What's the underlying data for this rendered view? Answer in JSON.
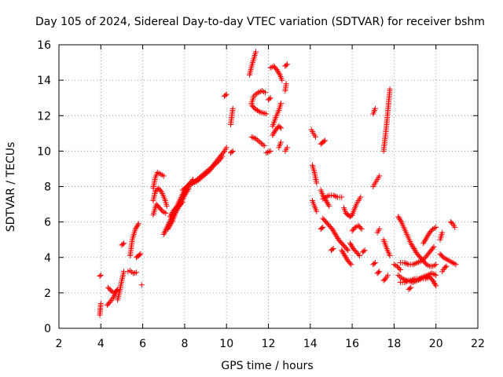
{
  "chart_data": {
    "type": "scatter",
    "title": "Day 105 of 2024, Sidereal Day-to-day VTEC variation (SDTVAR) for receiver bshm",
    "xlabel": "GPS time / hours",
    "ylabel": "SDTVAR / TECUs",
    "xlim": [
      2,
      22
    ],
    "ylim": [
      0,
      16
    ],
    "xticks": [
      "2",
      "4",
      "6",
      "8",
      "10",
      "12",
      "14",
      "16",
      "18",
      "20",
      "22"
    ],
    "yticks": [
      "0",
      "2",
      "4",
      "6",
      "8",
      "10",
      "12",
      "14",
      "16"
    ],
    "grid": true,
    "marker": "+",
    "color": "#ff0000",
    "segments": [
      {
        "x": [
          3.95,
          4.0
        ],
        "y": [
          2.95,
          3.0
        ]
      },
      {
        "x": [
          3.95,
          4.0
        ],
        "y": [
          0.75,
          1.4
        ]
      },
      {
        "x": [
          4.3,
          4.45,
          4.6,
          4.7,
          4.8
        ],
        "y": [
          1.3,
          1.5,
          1.75,
          2.0,
          2.2
        ]
      },
      {
        "x": [
          4.35,
          4.5,
          4.65,
          4.78
        ],
        "y": [
          2.3,
          2.1,
          2.0,
          2.15
        ]
      },
      {
        "x": [
          4.8,
          4.9,
          5.0,
          5.1
        ],
        "y": [
          1.6,
          2.1,
          2.7,
          3.2
        ]
      },
      {
        "x": [
          5.0,
          5.1
        ],
        "y": [
          4.7,
          4.8
        ]
      },
      {
        "x": [
          5.3,
          5.4,
          5.55,
          5.7
        ],
        "y": [
          3.2,
          3.25,
          3.1,
          3.15
        ]
      },
      {
        "x": [
          5.4,
          5.5,
          5.65,
          5.8
        ],
        "y": [
          4.1,
          5.0,
          5.6,
          5.9
        ]
      },
      {
        "x": [
          5.7,
          5.8,
          5.9
        ],
        "y": [
          4.0,
          4.1,
          4.2
        ]
      },
      {
        "x": [
          5.95
        ],
        "y": [
          2.45
        ]
      },
      {
        "x": [
          6.5,
          6.6,
          6.7,
          6.85,
          7.0
        ],
        "y": [
          7.9,
          8.5,
          8.8,
          8.7,
          8.6
        ]
      },
      {
        "x": [
          6.5,
          6.6,
          6.75,
          6.9,
          7.05,
          7.15
        ],
        "y": [
          7.2,
          7.7,
          7.9,
          7.7,
          7.3,
          6.9
        ]
      },
      {
        "x": [
          6.5,
          6.65,
          6.8,
          6.95,
          7.1
        ],
        "y": [
          6.4,
          7.0,
          6.8,
          6.6,
          6.5
        ]
      },
      {
        "x": [
          7.0,
          7.2,
          7.4,
          7.6,
          7.8,
          8.0,
          8.2,
          8.4
        ],
        "y": [
          5.3,
          5.8,
          6.3,
          6.8,
          7.3,
          7.8,
          8.1,
          8.4
        ]
      },
      {
        "x": [
          7.2,
          7.4,
          7.6,
          7.8,
          8.0,
          8.2
        ],
        "y": [
          5.6,
          6.0,
          6.6,
          7.0,
          7.5,
          7.9
        ]
      },
      {
        "x": [
          7.3,
          7.5,
          7.7,
          7.9
        ],
        "y": [
          6.3,
          6.7,
          6.9,
          7.1
        ]
      },
      {
        "x": [
          7.9,
          8.1,
          8.3,
          8.5,
          8.7,
          8.9,
          9.1,
          9.3,
          9.5,
          9.7,
          9.9,
          10.0
        ],
        "y": [
          7.8,
          8.0,
          8.2,
          8.3,
          8.5,
          8.7,
          8.9,
          9.1,
          9.4,
          9.7,
          10.0,
          10.2
        ]
      },
      {
        "x": [
          8.2,
          8.4,
          8.6,
          8.8,
          9.0,
          9.2,
          9.4,
          9.6,
          9.8
        ],
        "y": [
          8.0,
          8.2,
          8.3,
          8.5,
          8.7,
          8.9,
          9.2,
          9.4,
          9.7
        ]
      },
      {
        "x": [
          10.2,
          10.3
        ],
        "y": [
          9.9,
          10.0
        ]
      },
      {
        "x": [
          10.2,
          10.3
        ],
        "y": [
          11.5,
          12.4
        ]
      },
      {
        "x": [
          9.9,
          10.0
        ],
        "y": [
          13.1,
          13.2
        ]
      },
      {
        "x": [
          11.1,
          11.2,
          11.3,
          11.4
        ],
        "y": [
          14.3,
          14.8,
          15.2,
          15.6
        ]
      },
      {
        "x": [
          11.2,
          11.3,
          11.5,
          11.7,
          11.85
        ],
        "y": [
          12.7,
          13.1,
          13.3,
          13.4,
          13.3
        ]
      },
      {
        "x": [
          11.2,
          11.35,
          11.6,
          11.9
        ],
        "y": [
          12.6,
          12.4,
          12.2,
          12.1
        ]
      },
      {
        "x": [
          11.2,
          11.4,
          11.6,
          11.8
        ],
        "y": [
          10.8,
          10.7,
          10.5,
          10.3
        ]
      },
      {
        "x": [
          11.9,
          12.1
        ],
        "y": [
          9.9,
          10.0
        ]
      },
      {
        "x": [
          12.0,
          12.1
        ],
        "y": [
          12.9,
          13.0
        ]
      },
      {
        "x": [
          12.1,
          12.25,
          12.4,
          12.55,
          12.65
        ],
        "y": [
          14.7,
          14.8,
          14.6,
          14.3,
          14.0
        ]
      },
      {
        "x": [
          12.2,
          12.35,
          12.5,
          12.6
        ],
        "y": [
          11.4,
          11.9,
          12.3,
          12.7
        ]
      },
      {
        "x": [
          12.2,
          12.35,
          12.5,
          12.6
        ],
        "y": [
          10.9,
          11.2,
          11.4,
          11.3
        ]
      },
      {
        "x": [
          12.5,
          12.6
        ],
        "y": [
          10.2,
          10.5
        ]
      },
      {
        "x": [
          12.8,
          12.9
        ],
        "y": [
          14.8,
          14.9
        ]
      },
      {
        "x": [
          12.8,
          12.85
        ],
        "y": [
          13.4,
          13.8
        ]
      },
      {
        "x": [
          12.8,
          12.9
        ],
        "y": [
          10.0,
          10.2
        ]
      },
      {
        "x": [
          14.05,
          14.15,
          14.25
        ],
        "y": [
          11.2,
          11.0,
          10.8
        ]
      },
      {
        "x": [
          14.1,
          14.2,
          14.3
        ],
        "y": [
          9.2,
          8.8,
          8.2
        ]
      },
      {
        "x": [
          14.1,
          14.2,
          14.3
        ],
        "y": [
          7.2,
          6.9,
          6.6
        ]
      },
      {
        "x": [
          14.5,
          14.6,
          14.7
        ],
        "y": [
          10.4,
          10.5,
          10.6
        ]
      },
      {
        "x": [
          14.5,
          14.6,
          14.75,
          14.9
        ],
        "y": [
          7.8,
          7.5,
          7.2,
          6.9
        ]
      },
      {
        "x": [
          14.6,
          14.75,
          14.9,
          15.1,
          15.3,
          15.5
        ],
        "y": [
          7.3,
          7.4,
          7.5,
          7.5,
          7.4,
          7.4
        ]
      },
      {
        "x": [
          14.6,
          14.75,
          14.9,
          15.05,
          15.2,
          15.35,
          15.5,
          15.65,
          15.8
        ],
        "y": [
          6.2,
          6.0,
          5.8,
          5.6,
          5.3,
          5.0,
          4.8,
          4.6,
          4.4
        ]
      },
      {
        "x": [
          14.5,
          14.6
        ],
        "y": [
          5.6,
          5.7
        ]
      },
      {
        "x": [
          15.0,
          15.1
        ],
        "y": [
          4.4,
          4.5
        ]
      },
      {
        "x": [
          15.6,
          15.7,
          15.8,
          15.9,
          16.0
        ],
        "y": [
          6.8,
          6.5,
          6.4,
          6.3,
          6.4
        ]
      },
      {
        "x": [
          15.5,
          15.65,
          15.8,
          15.95
        ],
        "y": [
          4.4,
          4.1,
          3.8,
          3.6
        ]
      },
      {
        "x": [
          15.9,
          16.05,
          16.2,
          16.35
        ],
        "y": [
          4.8,
          4.5,
          4.3,
          4.1
        ]
      },
      {
        "x": [
          16.0,
          16.1,
          16.2,
          16.3,
          16.4
        ],
        "y": [
          6.4,
          6.7,
          7.0,
          7.2,
          7.4
        ]
      },
      {
        "x": [
          16.0,
          16.15,
          16.3,
          16.45
        ],
        "y": [
          5.5,
          5.7,
          5.8,
          5.6
        ]
      },
      {
        "x": [
          16.5,
          16.6
        ],
        "y": [
          4.3,
          4.4
        ]
      },
      {
        "x": [
          17.0,
          17.1,
          17.2,
          17.3
        ],
        "y": [
          8.0,
          8.2,
          8.4,
          8.6
        ]
      },
      {
        "x": [
          17.0,
          17.1
        ],
        "y": [
          12.1,
          12.4
        ]
      },
      {
        "x": [
          17.0,
          17.1
        ],
        "y": [
          3.6,
          3.7
        ]
      },
      {
        "x": [
          17.2,
          17.3
        ],
        "y": [
          5.4,
          5.6
        ]
      },
      {
        "x": [
          17.2,
          17.3
        ],
        "y": [
          3.1,
          3.2
        ]
      },
      {
        "x": [
          17.5,
          17.6,
          17.7,
          17.8
        ],
        "y": [
          10.0,
          11.0,
          12.2,
          13.5
        ]
      },
      {
        "x": [
          17.5,
          17.65,
          17.8
        ],
        "y": [
          5.0,
          4.5,
          4.1
        ]
      },
      {
        "x": [
          17.5,
          17.6,
          17.7
        ],
        "y": [
          2.7,
          2.8,
          3.0
        ]
      },
      {
        "x": [
          18.0,
          18.15,
          18.3
        ],
        "y": [
          3.6,
          3.5,
          3.3
        ]
      },
      {
        "x": [
          18.2,
          18.35,
          18.5,
          18.65,
          18.8,
          18.95,
          19.1,
          19.25,
          19.4,
          19.55,
          19.7,
          19.85,
          20.0
        ],
        "y": [
          6.3,
          6.0,
          5.6,
          5.2,
          4.8,
          4.5,
          4.2,
          4.0,
          3.8,
          3.6,
          3.5,
          3.5,
          3.6
        ]
      },
      {
        "x": [
          18.3,
          18.5,
          18.7,
          18.9,
          19.1,
          19.3,
          19.5,
          19.7,
          19.9
        ],
        "y": [
          3.7,
          3.7,
          3.6,
          3.6,
          3.7,
          3.8,
          4.0,
          4.3,
          4.6
        ]
      },
      {
        "x": [
          19.4,
          19.55,
          19.7,
          19.85,
          20.0
        ],
        "y": [
          4.8,
          5.1,
          5.4,
          5.6,
          5.7
        ]
      },
      {
        "x": [
          18.2,
          18.4,
          18.6,
          18.8,
          19.0,
          19.2,
          19.4,
          19.6,
          19.8,
          20.0
        ],
        "y": [
          3.0,
          2.8,
          2.7,
          2.7,
          2.8,
          2.8,
          2.9,
          3.0,
          3.1,
          3.0
        ]
      },
      {
        "x": [
          18.3,
          18.5,
          18.7,
          18.9,
          19.1,
          19.3,
          19.5,
          19.7,
          19.85,
          20.0
        ],
        "y": [
          2.6,
          2.6,
          2.7,
          2.6,
          2.7,
          2.8,
          2.8,
          2.9,
          2.7,
          2.4
        ]
      },
      {
        "x": [
          18.7,
          18.8
        ],
        "y": [
          2.2,
          2.3
        ]
      },
      {
        "x": [
          20.2,
          20.3
        ],
        "y": [
          5.0,
          5.4
        ]
      },
      {
        "x": [
          20.2,
          20.35,
          20.5,
          20.65,
          20.8,
          20.95
        ],
        "y": [
          4.2,
          4.0,
          3.9,
          3.8,
          3.7,
          3.6
        ]
      },
      {
        "x": [
          20.3,
          20.4,
          20.5
        ],
        "y": [
          3.2,
          3.4,
          3.5
        ]
      },
      {
        "x": [
          20.7,
          20.8,
          20.9
        ],
        "y": [
          6.0,
          5.9,
          5.7
        ]
      }
    ]
  }
}
